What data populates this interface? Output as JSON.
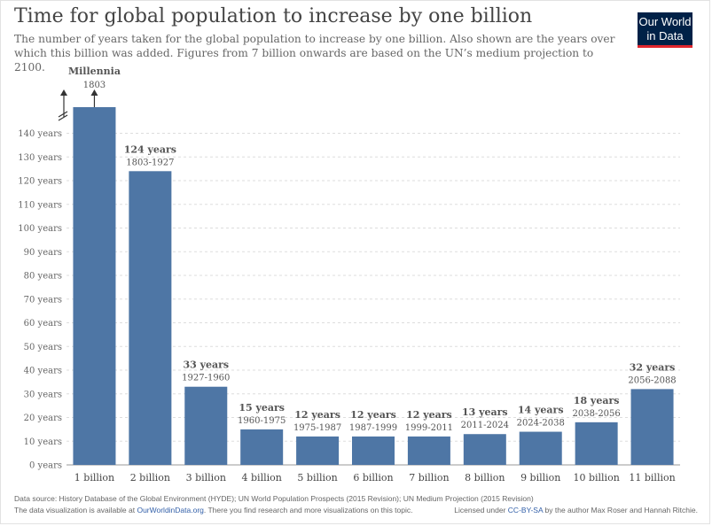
{
  "header": {
    "title": "Time for global population to increase by one billion",
    "subtitle": "The number of years taken for the global population to increase by one billion. Also shown are the years over which this billion was added. Figures from 7 billion onwards are based on the UN’s medium projection to 2100.",
    "logo_line1": "Our World",
    "logo_line2": "in Data"
  },
  "colors": {
    "bar": "#4e76a5",
    "grid": "#dddddd",
    "logo_bg": "#002147",
    "logo_accent": "#e0262d"
  },
  "chart_data": {
    "type": "bar",
    "title": "Time for global population to increase by one billion",
    "ylim": [
      0,
      140
    ],
    "y_ticks": [
      0,
      10,
      20,
      30,
      40,
      50,
      60,
      70,
      80,
      90,
      100,
      110,
      120,
      130,
      140
    ],
    "y_tick_suffix": " years",
    "grid": "horizontal dotted",
    "broken_axis_bar": "1 billion",
    "categories": [
      "1 billion",
      "2 billion",
      "3 billion",
      "4 billion",
      "5 billion",
      "6 billion",
      "7 billion",
      "8 billion",
      "9 billion",
      "10 billion",
      "11 billion"
    ],
    "values": [
      null,
      124,
      33,
      15,
      12,
      12,
      12,
      13,
      14,
      18,
      32
    ],
    "value_labels": [
      "Millennia",
      "124 years",
      "33 years",
      "15 years",
      "12 years",
      "12 years",
      "12 years",
      "13 years",
      "14 years",
      "18 years",
      "32 years"
    ],
    "period_labels": [
      "1803",
      "1803-1927",
      "1927-1960",
      "1960-1975",
      "1975-1987",
      "1987-1999",
      "1999-2011",
      "2011-2024",
      "2024-2038",
      "2038-2056",
      "2056-2088"
    ]
  },
  "footer": {
    "source_text": "Data source: History Database of the Global Environment (HYDE); UN World Population Prospects (2015 Revision); UN Medium Projection (2015 Revision)",
    "note_prefix": "The data visualization is available at ",
    "note_link": "OurWorldinData.org",
    "note_suffix": ". There you find research and more visualizations on this topic.",
    "license_prefix": "Licensed under ",
    "license_link": "CC-BY-SA",
    "license_suffix": " by the author Max Roser and Hannah Ritchie."
  }
}
